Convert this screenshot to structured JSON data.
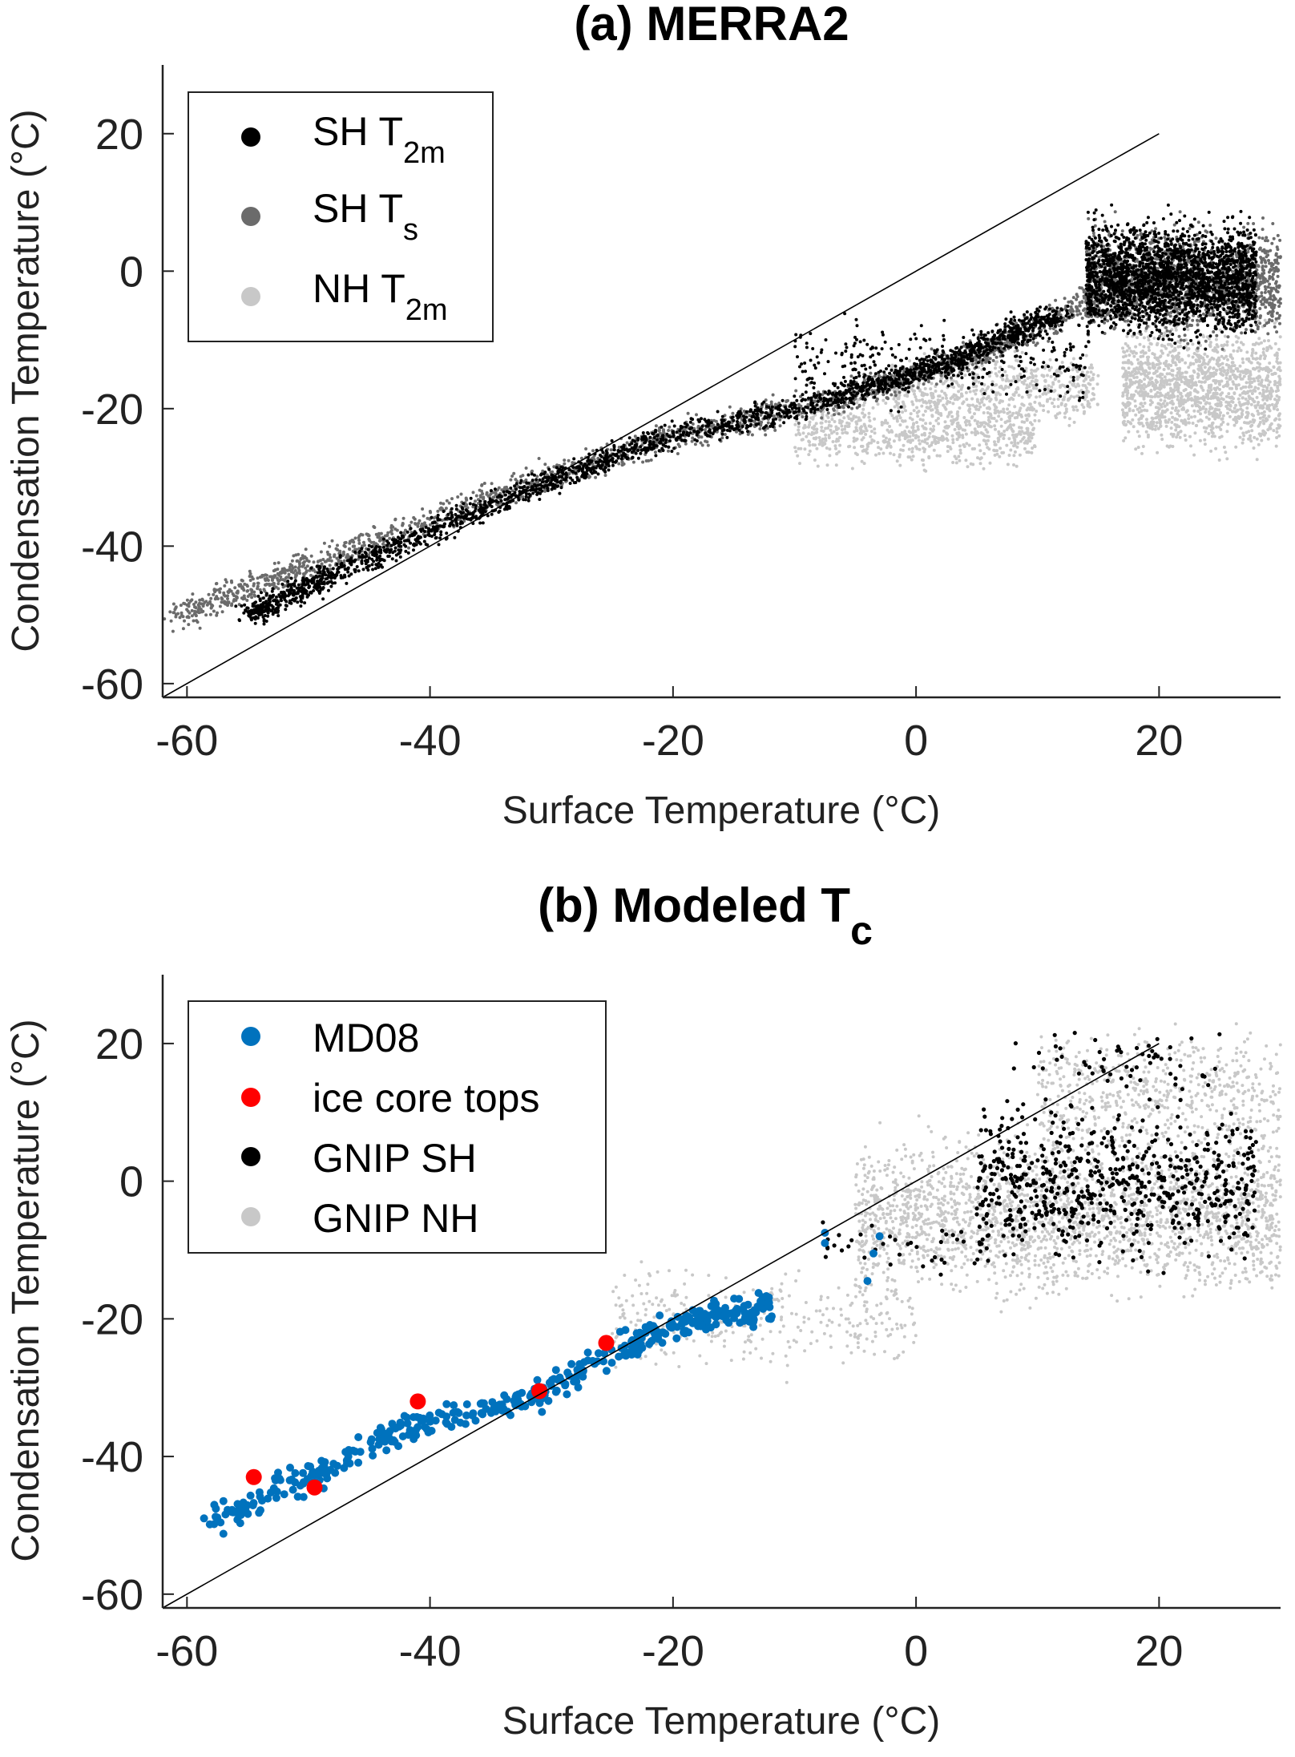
{
  "chart_data": [
    {
      "type": "scatter",
      "title": "(a) MERRA2",
      "xlabel": "Surface Temperature (°C)",
      "ylabel": "Condensation Temperature (°C)",
      "xlim": [
        -62,
        30
      ],
      "ylim": [
        -62,
        30
      ],
      "xticks": [
        "-60",
        "-40",
        "-20",
        "0",
        "20"
      ],
      "yticks": [
        "20",
        "0",
        "-20",
        "-40",
        "-60"
      ],
      "xtick_values": [
        -60,
        -40,
        -20,
        0,
        20
      ],
      "ytick_values": [
        20,
        0,
        -20,
        -40,
        -60
      ],
      "grid": false,
      "legend_position": "top-left",
      "reference_line": {
        "x": [
          -62,
          20
        ],
        "y": [
          -62,
          20
        ],
        "label": "1:1"
      },
      "legend": [
        {
          "main": "SH T",
          "sub": "2m",
          "color": "#000000"
        },
        {
          "main": "SH T",
          "sub": "s",
          "color": "#6b6b6b"
        },
        {
          "main": "NH T",
          "sub": "2m",
          "color": "#c8c8c8"
        }
      ],
      "series": [
        {
          "name": "NH T2m",
          "color": "#c8c8c8",
          "clouds": [
            {
              "x": [
                -10,
                10
              ],
              "y": [
                -30,
                -17
              ],
              "n": 700
            },
            {
              "x": [
                -2,
                15
              ],
              "y": [
                -24,
                -10
              ],
              "n": 600
            },
            {
              "x": [
                17,
                30
              ],
              "y": [
                -29,
                -5
              ],
              "n": 1400
            }
          ]
        },
        {
          "name": "SH Ts",
          "color": "#6b6b6b",
          "ridge": [
            [
              -61,
              -50
            ],
            [
              -50,
              -43
            ],
            [
              -35,
              -33
            ],
            [
              -20,
              -24
            ],
            [
              -5,
              -18
            ],
            [
              5,
              -12
            ],
            [
              15,
              -4
            ]
          ],
          "width": 3.2,
          "n": 1800,
          "clouds": [
            {
              "x": [
                14,
                30
              ],
              "y": [
                -12,
                9
              ],
              "n": 1500
            }
          ]
        },
        {
          "name": "SH T2m",
          "color": "#000000",
          "ridge": [
            [
              -55,
              -50
            ],
            [
              -48,
              -44
            ],
            [
              -35,
              -34
            ],
            [
              -22,
              -25
            ],
            [
              -8,
              -19
            ],
            [
              3,
              -13
            ],
            [
              12,
              -6
            ]
          ],
          "width": 2.6,
          "n": 2200,
          "clouds": [
            {
              "x": [
                14,
                28
              ],
              "y": [
                -12,
                10
              ],
              "n": 2200
            },
            {
              "x": [
                -10,
                14
              ],
              "y": [
                -22,
                -5
              ],
              "n": 300
            }
          ]
        }
      ]
    },
    {
      "type": "scatter",
      "title": "(b) Modeled T",
      "title_sub": "c",
      "xlabel": "Surface Temperature (°C)",
      "ylabel": "Condensation Temperature (°C)",
      "xlim": [
        -62,
        30
      ],
      "ylim": [
        -62,
        30
      ],
      "xticks": [
        "-60",
        "-40",
        "-20",
        "0",
        "20"
      ],
      "yticks": [
        "20",
        "0",
        "-20",
        "-40",
        "-60"
      ],
      "xtick_values": [
        -60,
        -40,
        -20,
        0,
        20
      ],
      "ytick_values": [
        20,
        0,
        -20,
        -40,
        -60
      ],
      "grid": false,
      "legend_position": "top-left",
      "reference_line": {
        "x": [
          -62,
          20
        ],
        "y": [
          -62,
          20
        ],
        "label": "1:1"
      },
      "legend": [
        {
          "main": "MD08",
          "color": "#0072bd"
        },
        {
          "main": "ice core tops",
          "color": "#ff0000"
        },
        {
          "main": "GNIP SH",
          "color": "#000000"
        },
        {
          "main": "GNIP NH",
          "color": "#c8c8c8"
        }
      ],
      "series": [
        {
          "name": "GNIP NH",
          "color": "#c8c8c8",
          "clouds": [
            {
              "x": [
                -25,
                0
              ],
              "y": [
                -30,
                -10
              ],
              "n": 350
            },
            {
              "x": [
                -5,
                30
              ],
              "y": [
                -20,
                10
              ],
              "n": 2200
            },
            {
              "x": [
                10,
                30
              ],
              "y": [
                0,
                25
              ],
              "n": 600
            }
          ]
        },
        {
          "name": "GNIP SH",
          "color": "#000000",
          "clouds": [
            {
              "x": [
                5,
                28
              ],
              "y": [
                -15,
                15
              ],
              "n": 650
            },
            {
              "x": [
                8,
                25
              ],
              "y": [
                10,
                24
              ],
              "n": 60
            },
            {
              "x": [
                -8,
                6
              ],
              "y": [
                -15,
                -5
              ],
              "n": 40
            }
          ]
        },
        {
          "name": "MD08",
          "color": "#0072bd",
          "ridge": [
            [
              -58,
              -49
            ],
            [
              -50,
              -43
            ],
            [
              -42,
              -36
            ],
            [
              -32,
              -32
            ],
            [
              -24,
              -24
            ],
            [
              -18,
              -20
            ],
            [
              -12,
              -18
            ]
          ],
          "width": 3.0,
          "n": 420,
          "extra_points": [
            [
              -7.5,
              -7.5
            ],
            [
              -7.5,
              -9
            ],
            [
              -4,
              -14.5
            ],
            [
              -3.5,
              -10.5
            ],
            [
              -3,
              -8
            ]
          ]
        },
        {
          "name": "ice core tops",
          "color": "#ff0000",
          "points": [
            [
              -54.5,
              -43
            ],
            [
              -49.5,
              -44.5
            ],
            [
              -41,
              -32
            ],
            [
              -31,
              -30.5
            ],
            [
              -25.5,
              -23.5
            ]
          ]
        }
      ]
    }
  ]
}
